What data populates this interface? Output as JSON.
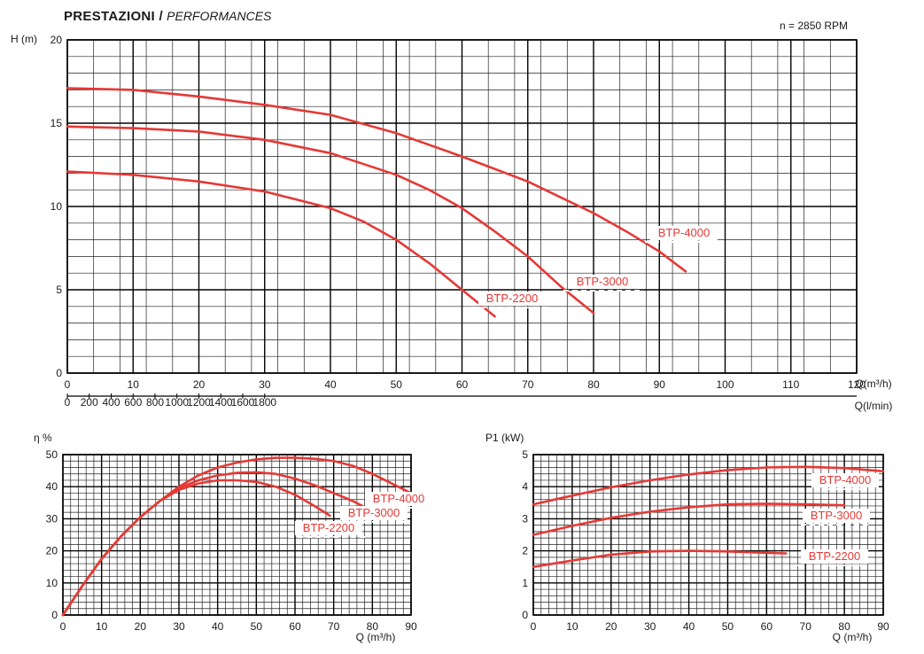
{
  "header": {
    "title_bold": "PRESTAZIONI /",
    "title_italic": "PERFORMANCES",
    "rpm_note": "n = 2850 RPM"
  },
  "colors": {
    "curve": "#e53935",
    "label": "#e53935",
    "grid_minor": "#222222",
    "grid_major": "#000000",
    "text": "#1a1a1a"
  },
  "chart_data": [
    {
      "id": "head",
      "type": "line",
      "ylabel": "H (m)",
      "xlabel": "Q(m³/h)",
      "xlabel2": "Q(l/min)",
      "xlim": [
        0,
        120
      ],
      "ylim": [
        0,
        20
      ],
      "xticks": [
        0,
        10,
        20,
        30,
        40,
        50,
        60,
        70,
        80,
        90,
        100,
        110,
        120
      ],
      "yticks": [
        0,
        5,
        10,
        15,
        20
      ],
      "x2ticks": [
        0,
        200,
        400,
        600,
        800,
        1000,
        1200,
        1400,
        1600,
        1800
      ],
      "grid": true,
      "series": [
        {
          "name": "BTP-2200",
          "x": [
            0,
            10,
            20,
            30,
            40,
            45,
            50,
            55,
            60,
            65
          ],
          "y": [
            12.1,
            11.9,
            11.5,
            10.9,
            9.9,
            9.1,
            8.0,
            6.6,
            5.0,
            3.4
          ]
        },
        {
          "name": "BTP-3000",
          "x": [
            0,
            10,
            20,
            30,
            40,
            50,
            55,
            60,
            65,
            70,
            75,
            80
          ],
          "y": [
            14.8,
            14.7,
            14.5,
            14.0,
            13.2,
            11.9,
            11.0,
            9.9,
            8.5,
            7.0,
            5.2,
            3.6
          ]
        },
        {
          "name": "BTP-4000",
          "x": [
            0,
            10,
            20,
            30,
            40,
            50,
            60,
            70,
            80,
            85,
            90,
            94
          ],
          "y": [
            17.1,
            17.0,
            16.6,
            16.1,
            15.5,
            14.4,
            13.0,
            11.5,
            9.6,
            8.5,
            7.3,
            6.1
          ]
        }
      ]
    },
    {
      "id": "efficiency",
      "type": "line",
      "ylabel": "η %",
      "xlabel": "Q (m³/h)",
      "xlim": [
        0,
        90
      ],
      "ylim": [
        0,
        50
      ],
      "xticks": [
        0,
        10,
        20,
        30,
        40,
        50,
        60,
        70,
        80,
        90
      ],
      "yticks": [
        0,
        10,
        20,
        30,
        40,
        50
      ],
      "grid": true,
      "series": [
        {
          "name": "BTP-2200",
          "x": [
            0,
            5,
            10,
            15,
            20,
            25,
            30,
            35,
            40,
            45,
            50,
            55,
            60,
            65,
            69
          ],
          "y": [
            0,
            9,
            17.5,
            24.5,
            30.5,
            35.5,
            39,
            41,
            42,
            42,
            41.5,
            40,
            37.5,
            34,
            31
          ]
        },
        {
          "name": "BTP-3000",
          "x": [
            0,
            5,
            10,
            15,
            20,
            25,
            30,
            35,
            40,
            45,
            50,
            55,
            60,
            65,
            70,
            75,
            79
          ],
          "y": [
            0,
            9,
            17.5,
            24.5,
            30.5,
            35.5,
            39.5,
            42,
            43.5,
            44.3,
            44.5,
            44,
            42.5,
            40.5,
            38,
            35.5,
            33
          ]
        },
        {
          "name": "BTP-4000",
          "x": [
            0,
            5,
            10,
            15,
            20,
            25,
            30,
            35,
            40,
            45,
            50,
            55,
            60,
            65,
            70,
            75,
            80,
            85,
            90
          ],
          "y": [
            0,
            9,
            17.5,
            24.5,
            30.5,
            35.5,
            40,
            43.5,
            46,
            47.5,
            48.5,
            49,
            49,
            48.7,
            48,
            46.5,
            44,
            41,
            38
          ]
        }
      ]
    },
    {
      "id": "power",
      "type": "line",
      "ylabel": "P1 (kW)",
      "xlabel": "Q (m³/h)",
      "xlim": [
        0,
        90
      ],
      "ylim": [
        0,
        5
      ],
      "xticks": [
        0,
        10,
        20,
        30,
        40,
        50,
        60,
        70,
        80,
        90
      ],
      "yticks": [
        0,
        1,
        2,
        3,
        4,
        5
      ],
      "grid": true,
      "series": [
        {
          "name": "BTP-2200",
          "x": [
            0,
            10,
            20,
            30,
            40,
            50,
            60,
            65
          ],
          "y": [
            1.5,
            1.7,
            1.88,
            1.98,
            2.0,
            1.98,
            1.94,
            1.92
          ]
        },
        {
          "name": "BTP-3000",
          "x": [
            0,
            10,
            20,
            30,
            40,
            50,
            60,
            70,
            80
          ],
          "y": [
            2.5,
            2.78,
            3.03,
            3.22,
            3.36,
            3.45,
            3.47,
            3.45,
            3.42
          ]
        },
        {
          "name": "BTP-4000",
          "x": [
            0,
            10,
            20,
            30,
            40,
            50,
            60,
            70,
            80,
            90
          ],
          "y": [
            3.45,
            3.72,
            3.98,
            4.2,
            4.38,
            4.52,
            4.6,
            4.62,
            4.58,
            4.48
          ]
        }
      ]
    }
  ]
}
